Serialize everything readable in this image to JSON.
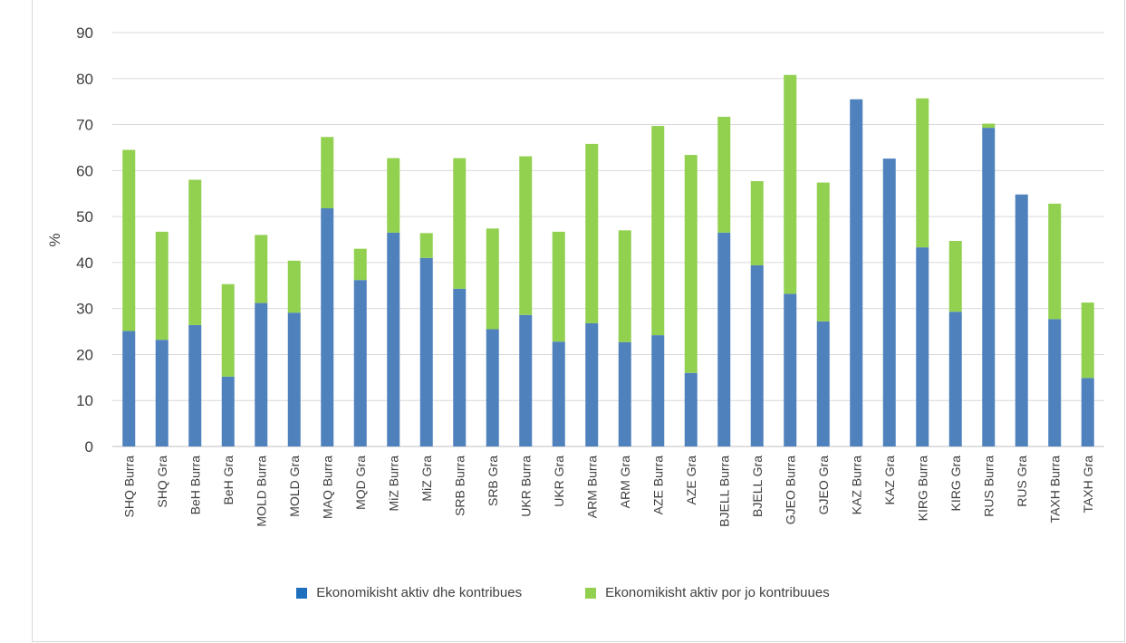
{
  "chart_data": {
    "type": "bar",
    "stacked": true,
    "title": "",
    "xlabel": "",
    "ylabel": "%",
    "ylim": [
      0,
      90
    ],
    "yticks": [
      0,
      10,
      20,
      30,
      40,
      50,
      60,
      70,
      80,
      90
    ],
    "grid": true,
    "legend_position": "bottom",
    "categories": [
      "SHQ Burra",
      "SHQ Gra",
      "BeH Burra",
      "BeH Gra",
      "MOLD Burra",
      "MOLD Gra",
      "MAQ Burra",
      "MQD Gra",
      "MiZ Burra",
      "MiZ Gra",
      "SRB Burra",
      "SRB Gra",
      "UKR Burra",
      "UKR Gra",
      "ARM Burra",
      "ARM Gra",
      "AZE Burra",
      "AZE Gra",
      "BJELL Burra",
      "BJELL Gra",
      "GJEO Burra",
      "GJEO Gra",
      "KAZ Burra",
      "KAZ Gra",
      "KIRG Burra",
      "KIRG Gra",
      "RUS Burra",
      "RUS Gra",
      "TAXH Burra",
      "TAXH Gra"
    ],
    "series": [
      {
        "name": "Ekonomikisht aktiv dhe kontribues",
        "color": "#4f81bd",
        "legend_color": "#1f6fbf",
        "values": [
          25.1,
          23.2,
          26.4,
          15.2,
          31.2,
          29.1,
          51.8,
          36.2,
          46.5,
          41.0,
          34.3,
          25.5,
          28.6,
          22.8,
          26.8,
          22.7,
          24.2,
          16.0,
          46.5,
          39.4,
          33.2,
          27.2,
          75.5,
          62.6,
          43.3,
          29.3,
          69.3,
          54.8,
          27.7,
          14.9
        ]
      },
      {
        "name": "Ekonomikisht aktiv por jo kontribuues",
        "color": "#92d050",
        "legend_color": "#92d050",
        "values": [
          39.4,
          23.5,
          31.6,
          20.1,
          14.8,
          11.3,
          15.5,
          6.8,
          16.2,
          5.4,
          28.4,
          21.9,
          34.5,
          23.9,
          39.0,
          24.3,
          45.5,
          47.4,
          25.2,
          18.3,
          47.6,
          30.2,
          0,
          0,
          32.4,
          15.4,
          0.9,
          0,
          25.1,
          16.4
        ]
      }
    ]
  }
}
